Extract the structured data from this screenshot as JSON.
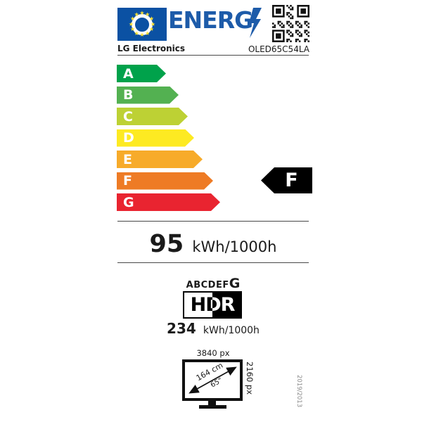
{
  "header": {
    "logo_text": "ENERG",
    "supplier": "LG Electronics",
    "model": "OLED65C54LA"
  },
  "colors": {
    "flag_blue": "#0b51a3",
    "logo_blue": "#1d5ba9",
    "star_yellow": "#ffe230",
    "rating_black": "#000000"
  },
  "efficiency_scale": {
    "grades": [
      {
        "letter": "A",
        "color": "#00a24b",
        "width": 70
      },
      {
        "letter": "B",
        "color": "#53b151",
        "width": 88
      },
      {
        "letter": "C",
        "color": "#bdd134",
        "width": 101
      },
      {
        "letter": "D",
        "color": "#fdea22",
        "width": 110
      },
      {
        "letter": "E",
        "color": "#f7ab2a",
        "width": 122
      },
      {
        "letter": "F",
        "color": "#ee7b25",
        "width": 137
      },
      {
        "letter": "G",
        "color": "#e92430",
        "width": 147
      }
    ],
    "rating": "F"
  },
  "sdr_consumption": {
    "value": "95",
    "unit": "kWh/1000h"
  },
  "hdr_section": {
    "class_letters": "ABCDEF",
    "class_current": "G",
    "hdr_label": "HDR",
    "value": "234",
    "unit": "kWh/1000h"
  },
  "screen": {
    "horizontal_resolution": "3840 px",
    "vertical_resolution": "2160 px",
    "diagonal_cm": "164 cm",
    "diagonal_inches": "65\"",
    "regulation_numbers": "2019/2013"
  }
}
